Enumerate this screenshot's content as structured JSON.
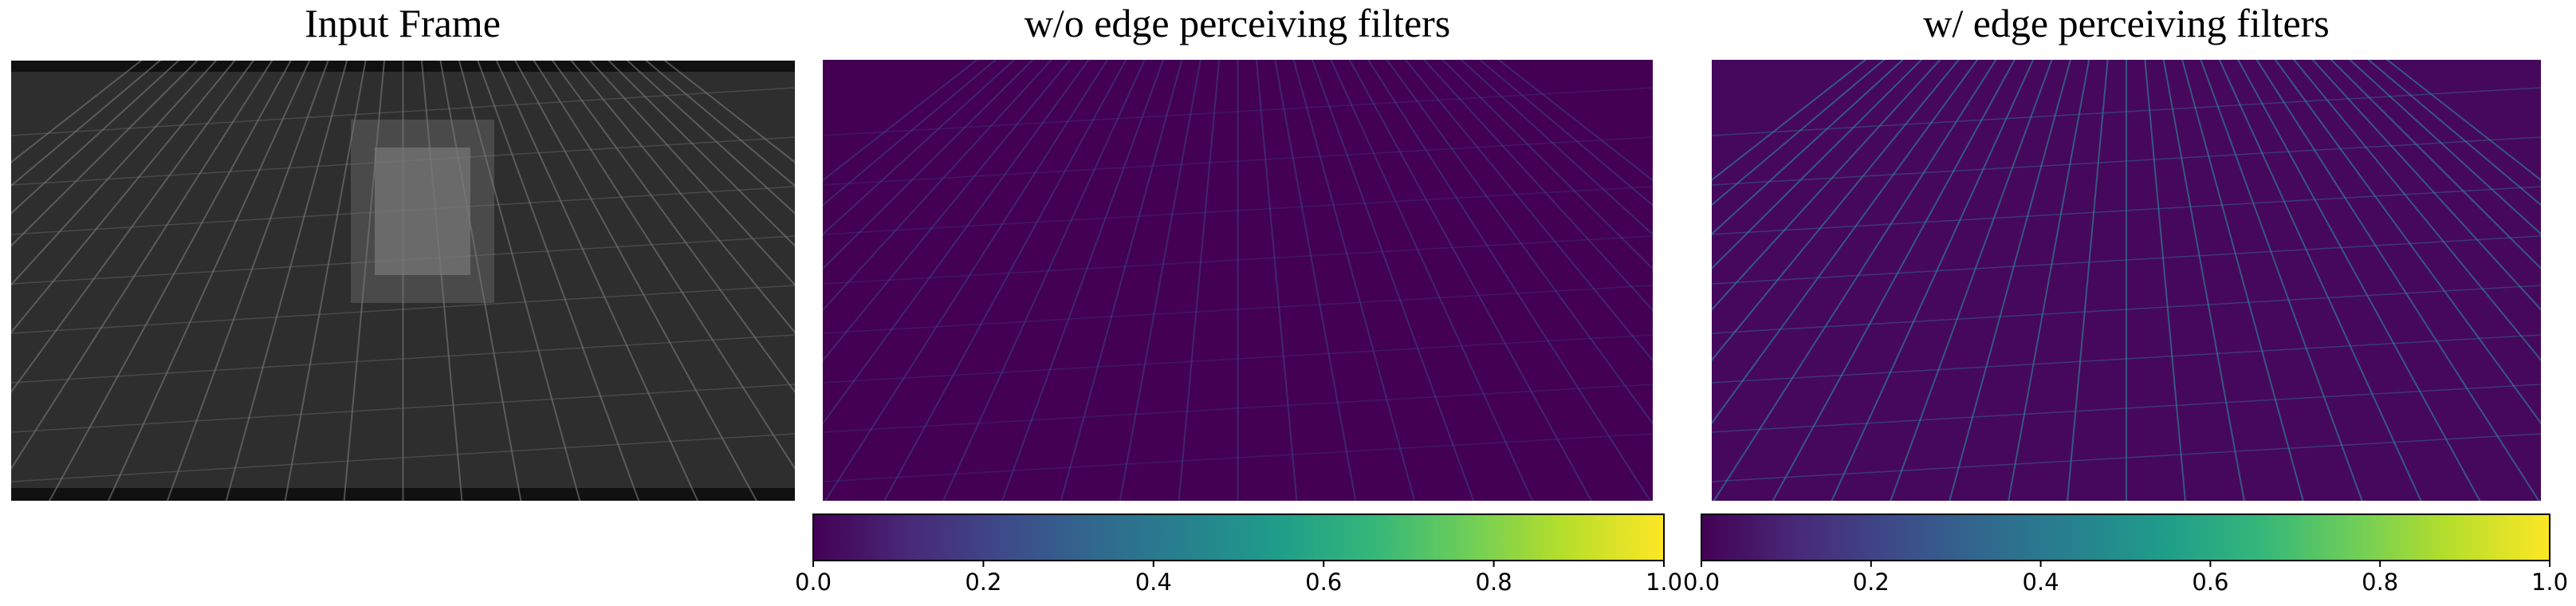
{
  "panels": [
    {
      "title": "Input Frame"
    },
    {
      "title": "w/o edge perceiving filters"
    },
    {
      "title": "w/ edge perceiving filters"
    }
  ],
  "colorbars": [
    {
      "lim": [
        0,
        1
      ],
      "ticks": [
        {
          "value": 0,
          "label": "0.0"
        },
        {
          "value": 0.2,
          "label": "0.2"
        },
        {
          "value": 0.4,
          "label": "0.4"
        },
        {
          "value": 0.6,
          "label": "0.6"
        },
        {
          "value": 0.8,
          "label": "0.8"
        },
        {
          "value": 1,
          "label": "1.0"
        }
      ]
    },
    {
      "lim": [
        0,
        1
      ],
      "ticks": [
        {
          "value": 0,
          "label": "0.0"
        },
        {
          "value": 0.2,
          "label": "0.2"
        },
        {
          "value": 0.4,
          "label": "0.4"
        },
        {
          "value": 0.6,
          "label": "0.6"
        },
        {
          "value": 0.8,
          "label": "0.8"
        },
        {
          "value": 1,
          "label": "1.0"
        }
      ]
    }
  ]
}
